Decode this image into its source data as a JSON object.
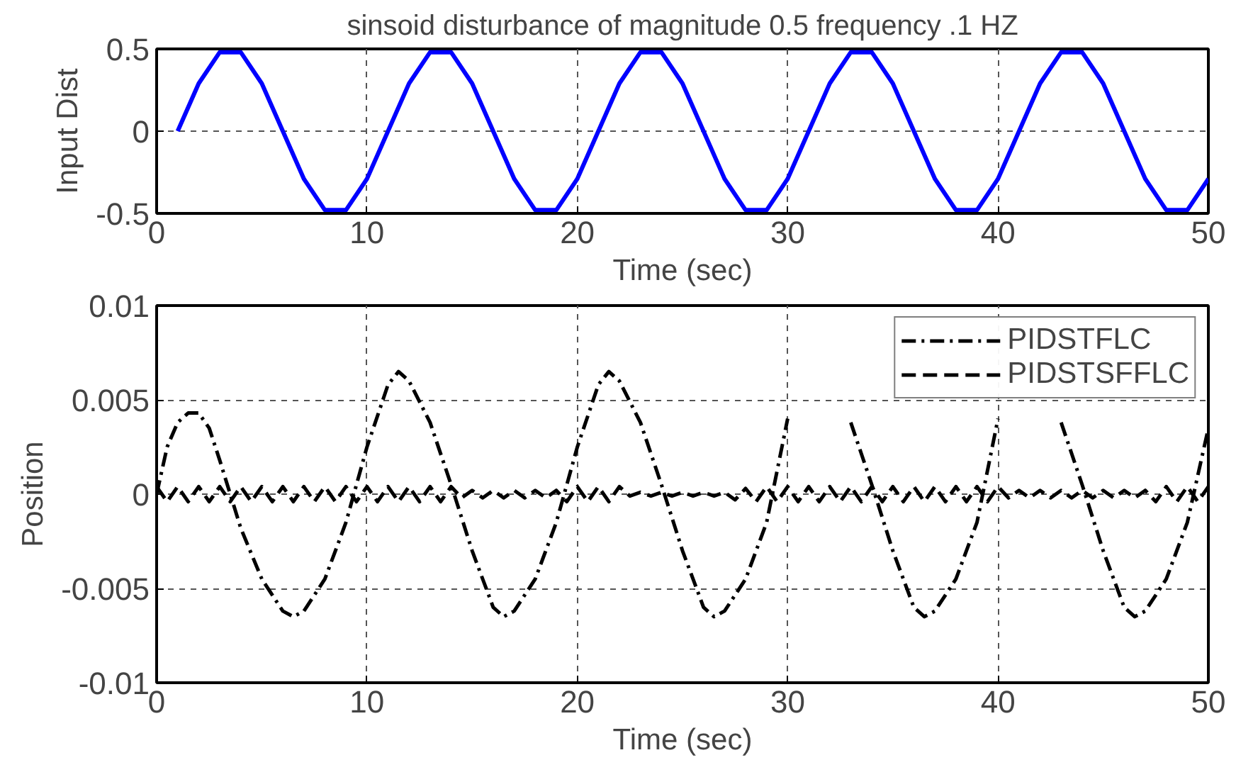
{
  "chart_data": [
    {
      "type": "line",
      "title": "sinsoid disturbance of magnitude 0.5 frequency .1 HZ",
      "xlabel": "Time (sec)",
      "ylabel": "Input Dist",
      "x": [
        1,
        2,
        3,
        4,
        5,
        6,
        7,
        8,
        9,
        10,
        11,
        12,
        13,
        14,
        15,
        16,
        17,
        18,
        19,
        20,
        21,
        22,
        23,
        24,
        25,
        26,
        27,
        28,
        29,
        30,
        31,
        32,
        33,
        34,
        35,
        36,
        37,
        38,
        39,
        40,
        41,
        42,
        43,
        44,
        45,
        46,
        47,
        48,
        49,
        50
      ],
      "series": [
        {
          "color": "#0000ff",
          "line_style": "solid",
          "values": [
            0,
            0.29,
            0.48,
            0.48,
            0.29,
            0,
            -0.29,
            -0.48,
            -0.48,
            -0.29,
            0,
            0.29,
            0.48,
            0.48,
            0.29,
            0,
            -0.29,
            -0.48,
            -0.48,
            -0.29,
            0,
            0.29,
            0.48,
            0.48,
            0.29,
            0,
            -0.29,
            -0.48,
            -0.48,
            -0.29,
            0,
            0.29,
            0.48,
            0.48,
            0.29,
            0,
            -0.29,
            -0.48,
            -0.48,
            -0.29,
            0,
            0.29,
            0.48,
            0.48,
            0.29,
            0,
            -0.29,
            -0.48,
            -0.48,
            -0.29
          ]
        }
      ],
      "xlim": [
        0,
        50
      ],
      "xticks": [
        0,
        10,
        20,
        30,
        40,
        50
      ],
      "ylim": [
        -0.5,
        0.5
      ],
      "yticks": [
        -0.5,
        0,
        0.5
      ],
      "grid": true,
      "legend": false
    },
    {
      "type": "line",
      "xlabel": "Time (sec)",
      "ylabel": "Position",
      "series": [
        {
          "name": "PIDSTFLC",
          "color": "#000000",
          "line_style": "dashdot",
          "x": [
            0,
            0.5,
            1,
            1.5,
            2,
            2.5,
            3,
            3.5,
            4,
            5,
            6,
            6.5,
            7,
            8,
            9,
            10,
            11,
            11.5,
            12,
            13,
            14,
            15,
            16,
            16.5,
            17,
            18,
            19,
            20,
            21,
            21.5,
            22,
            23,
            24,
            25,
            26,
            26.5,
            27,
            28,
            29,
            30,
            31,
            31.5,
            32,
            33,
            34,
            35,
            36,
            36.5,
            37,
            38,
            39,
            40,
            41,
            41.5,
            42,
            43,
            44,
            45,
            46,
            46.5,
            47,
            48,
            49,
            50
          ],
          "values": [
            0,
            0.0025,
            0.0038,
            0.0043,
            0.0043,
            0.0035,
            0.0018,
            0,
            -0.0018,
            -0.0045,
            -0.0062,
            -0.0065,
            -0.0062,
            -0.0045,
            -0.0015,
            0.0025,
            0.0058,
            0.0065,
            0.006,
            0.0038,
            0.0005,
            -0.003,
            -0.006,
            -0.0065,
            -0.0062,
            -0.0045,
            -0.0015,
            0.0025,
            0.0058,
            0.0065,
            0.006,
            0.0038,
            0.0005,
            -0.003,
            -0.006,
            -0.0065,
            -0.0062,
            -0.0045,
            -0.0015,
            0.004,
            null,
            null,
            null,
            0.0038,
            0.0005,
            -0.003,
            -0.006,
            -0.0065,
            -0.0062,
            -0.0045,
            -0.0015,
            0.004,
            null,
            null,
            null,
            0.0038,
            0.0005,
            -0.003,
            -0.006,
            -0.0065,
            -0.0062,
            -0.0045,
            -0.0015,
            0.0035
          ]
        },
        {
          "name": "PIDSTSFFLC",
          "color": "#000000",
          "line_style": "dashed",
          "x": [
            0,
            0.5,
            1,
            1.5,
            2,
            2.5,
            3,
            3.5,
            4,
            4.5,
            5,
            5.5,
            6,
            6.5,
            7,
            7.5,
            8,
            8.5,
            9,
            9.5,
            10,
            10.5,
            11,
            11.5,
            12,
            12.5,
            13,
            13.5,
            14,
            14.5,
            15,
            15.5,
            16,
            16.5,
            17,
            17.5,
            18,
            18.5,
            19,
            19.5,
            20,
            20.5,
            21,
            21.5,
            22,
            22.5,
            23,
            23.5,
            24,
            24.5,
            25,
            25.5,
            26,
            26.5,
            27,
            27.5,
            28,
            28.5,
            29,
            29.5,
            30,
            30.5,
            31,
            31.5,
            32,
            32.5,
            33,
            33.5,
            34,
            34.5,
            35,
            35.5,
            36,
            36.5,
            37,
            37.5,
            38,
            38.5,
            39,
            39.5,
            40,
            40.5,
            41,
            41.5,
            42,
            42.5,
            43,
            43.5,
            44,
            44.5,
            45,
            45.5,
            46,
            46.5,
            47,
            47.5,
            48,
            48.5,
            49,
            49.5,
            50
          ],
          "values": [
            0.0004,
            -0.0004,
            0.0004,
            -0.0004,
            0.0004,
            -0.0004,
            0.0004,
            -0.0004,
            0.0004,
            -0.0004,
            0.0004,
            -0.0004,
            0.0004,
            -0.0004,
            0.0004,
            -0.0004,
            0.0004,
            -0.0004,
            0.0004,
            -0.0004,
            0.0004,
            -0.0004,
            0.0004,
            -0.0004,
            0.0004,
            -0.0004,
            0.0004,
            -0.0004,
            0.0004,
            -0.0002,
            0.0002,
            -0.0002,
            0.0002,
            -0.0002,
            0.0002,
            -0.0002,
            0.0002,
            -0.0002,
            0.0002,
            -0.0004,
            0.0004,
            -0.0004,
            0.0004,
            -0.0004,
            0.0004,
            -0.0001,
            0.0001,
            -0.0001,
            0.0001,
            -0.0001,
            0.0001,
            -0.0001,
            0.0001,
            -0.0001,
            0.0001,
            -0.0003,
            0.0003,
            -0.0004,
            0.0004,
            -0.0004,
            0.0004,
            -0.0004,
            0.0004,
            -0.0004,
            0.0004,
            -0.0004,
            0.0004,
            -0.0004,
            0.0004,
            -0.0004,
            0.0004,
            -0.0004,
            0.0004,
            -0.0004,
            0.0004,
            -0.0004,
            0.0004,
            -0.0004,
            0.0004,
            -0.0004,
            0.0004,
            -0.0002,
            0.0002,
            -0.0002,
            0.0002,
            -0.0002,
            0.0002,
            -0.0002,
            0.0002,
            -0.0002,
            0.0002,
            -0.0002,
            0.0002,
            -0.0002,
            0.0002,
            -0.0004,
            0.0004,
            -0.0004,
            0.0004,
            -0.0004,
            0.0004
          ]
        }
      ],
      "xlim": [
        0,
        50
      ],
      "xticks": [
        0,
        10,
        20,
        30,
        40,
        50
      ],
      "ylim": [
        -0.01,
        0.01
      ],
      "yticks": [
        -0.01,
        -0.005,
        0,
        0.005,
        0.01
      ],
      "grid": true,
      "legend": "top right"
    }
  ]
}
